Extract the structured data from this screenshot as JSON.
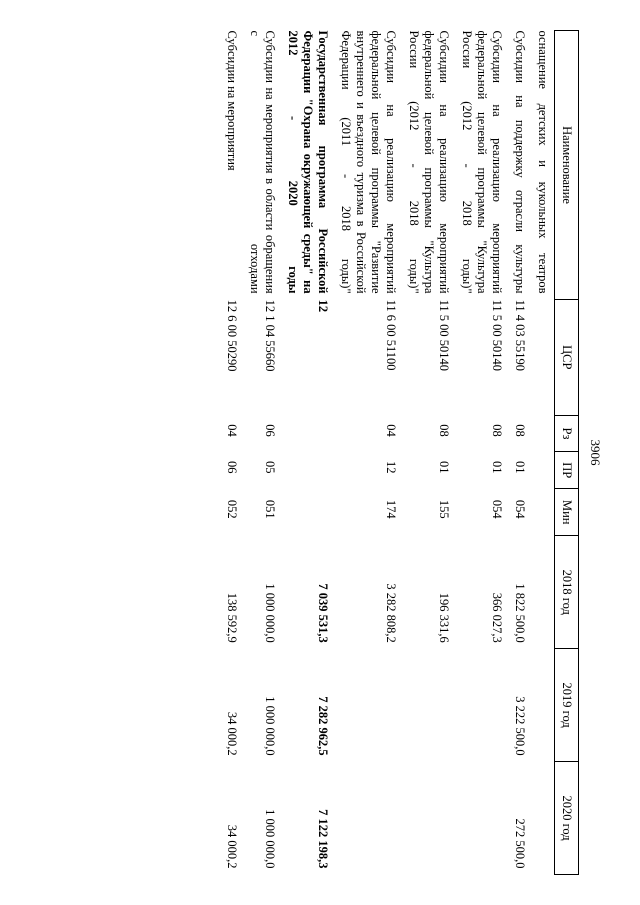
{
  "page_number": "3906",
  "header": {
    "name": "Наименование",
    "csr": "ЦСР",
    "rz": "Рз",
    "pr": "ПР",
    "min": "Мин",
    "y2018": "2018 год",
    "y2019": "2019 год",
    "y2020": "2020 год"
  },
  "rows": [
    {
      "name": "оснащение детских и кукольных театров",
      "csr": "",
      "rz": "",
      "pr": "",
      "min": "",
      "y2018": "",
      "y2019": "",
      "y2020": "",
      "bold": false,
      "justify": true
    },
    {
      "name": "Субсидии на поддержку отрасли культуры",
      "csr": "11 4 03 55190",
      "rz": "08",
      "pr": "01",
      "min": "054",
      "y2018": "1 822 500,0",
      "y2019": "3 222 500,0",
      "y2020": "272 500,0",
      "bold": false,
      "justify": true
    },
    {
      "name": "Субсидии на реализацию мероприятий федеральной целевой программы \"Культура России (2012 - 2018 годы)\"",
      "csr": "11 5 00 50140",
      "rz": "08",
      "pr": "01",
      "min": "054",
      "y2018": "366 027,3",
      "y2019": "",
      "y2020": "",
      "bold": false,
      "justify": true
    },
    {
      "name": "Субсидии на реализацию мероприятий федеральной целевой программы \"Культура России (2012 - 2018 годы)\"",
      "csr": "11 5 00 50140",
      "rz": "08",
      "pr": "01",
      "min": "155",
      "y2018": "196 331,6",
      "y2019": "",
      "y2020": "",
      "bold": false,
      "justify": true
    },
    {
      "name": "Субсидии на реализацию мероприятий федеральной целевой программы \"Развитие внутреннего и въездного туризма в Российской Федерации (2011 - 2018 годы)\"",
      "csr": "11 6 00 51100",
      "rz": "04",
      "pr": "12",
      "min": "174",
      "y2018": "3 282 808,2",
      "y2019": "",
      "y2020": "",
      "bold": false,
      "justify": true
    },
    {
      "name": "Государственная программа Российской Федерации \"Охрана окружающей среды\" на 2012 - 2020 годы",
      "csr": "12",
      "rz": "",
      "pr": "",
      "min": "",
      "y2018": "7 039 531,3",
      "y2019": "7 282 962,5",
      "y2020": "7 122 198,3",
      "bold": true,
      "justify": true
    },
    {
      "name": "Субсидии на мероприятия в области обращения с отходами",
      "csr": "12 1 04 55660",
      "rz": "06",
      "pr": "05",
      "min": "051",
      "y2018": "1 000 000,0",
      "y2019": "1 000 000,0",
      "y2020": "1 000 000,0",
      "bold": false,
      "justify": true
    },
    {
      "name": "Субсидии на мероприятия",
      "csr": "12 6 00 50290",
      "rz": "04",
      "pr": "06",
      "min": "052",
      "y2018": "138 592,9",
      "y2019": "34 000,2",
      "y2020": "34 000,2",
      "bold": false,
      "justify": false
    }
  ]
}
